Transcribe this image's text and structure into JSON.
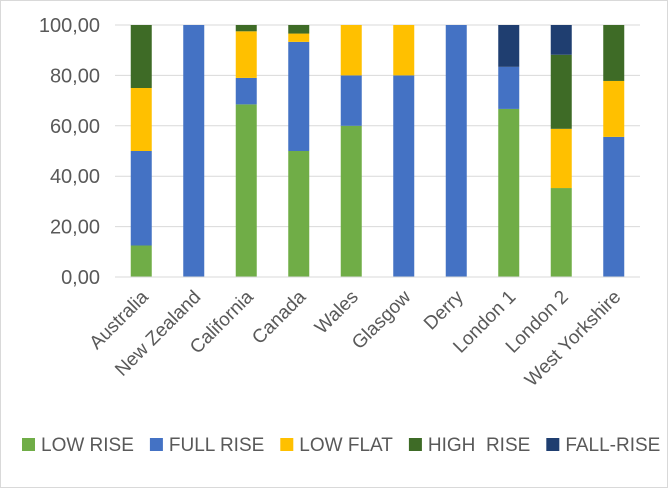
{
  "chart_data": {
    "type": "bar",
    "stacked": true,
    "categories": [
      "Australia",
      "New Zealand",
      "California",
      "Canada",
      "Wales",
      "Glasgow",
      "Derry",
      "London 1",
      "London 2",
      "West Yorkshire"
    ],
    "series": [
      {
        "name": "LOW RISE",
        "color": "#70ad47",
        "values": [
          12.5,
          0,
          68.5,
          50,
          60,
          0,
          0,
          66.7,
          35.3,
          0
        ]
      },
      {
        "name": "FULL RISE",
        "color": "#4472c4",
        "values": [
          37.5,
          100,
          10.5,
          43.3,
          20,
          80,
          100,
          16.7,
          0,
          55.6
        ]
      },
      {
        "name": "LOW FLAT",
        "color": "#ffc000",
        "values": [
          25,
          0,
          18.5,
          3.3,
          20,
          20,
          0,
          0,
          23.5,
          22.2
        ]
      },
      {
        "name": "HIGH  RISE",
        "color": "#3e6b26",
        "values": [
          25,
          0,
          2.5,
          3.4,
          0,
          0,
          0,
          0,
          29.4,
          22.2
        ]
      },
      {
        "name": "FALL-RISE",
        "color": "#1f3e70",
        "values": [
          0,
          0,
          0,
          0,
          0,
          0,
          0,
          16.6,
          11.8,
          0
        ]
      }
    ],
    "ylim": [
      0,
      100
    ],
    "yticks": [
      "0,00",
      "20,00",
      "40,00",
      "60,00",
      "80,00",
      "100,00"
    ],
    "grid": true,
    "legend_position": "bottom"
  }
}
